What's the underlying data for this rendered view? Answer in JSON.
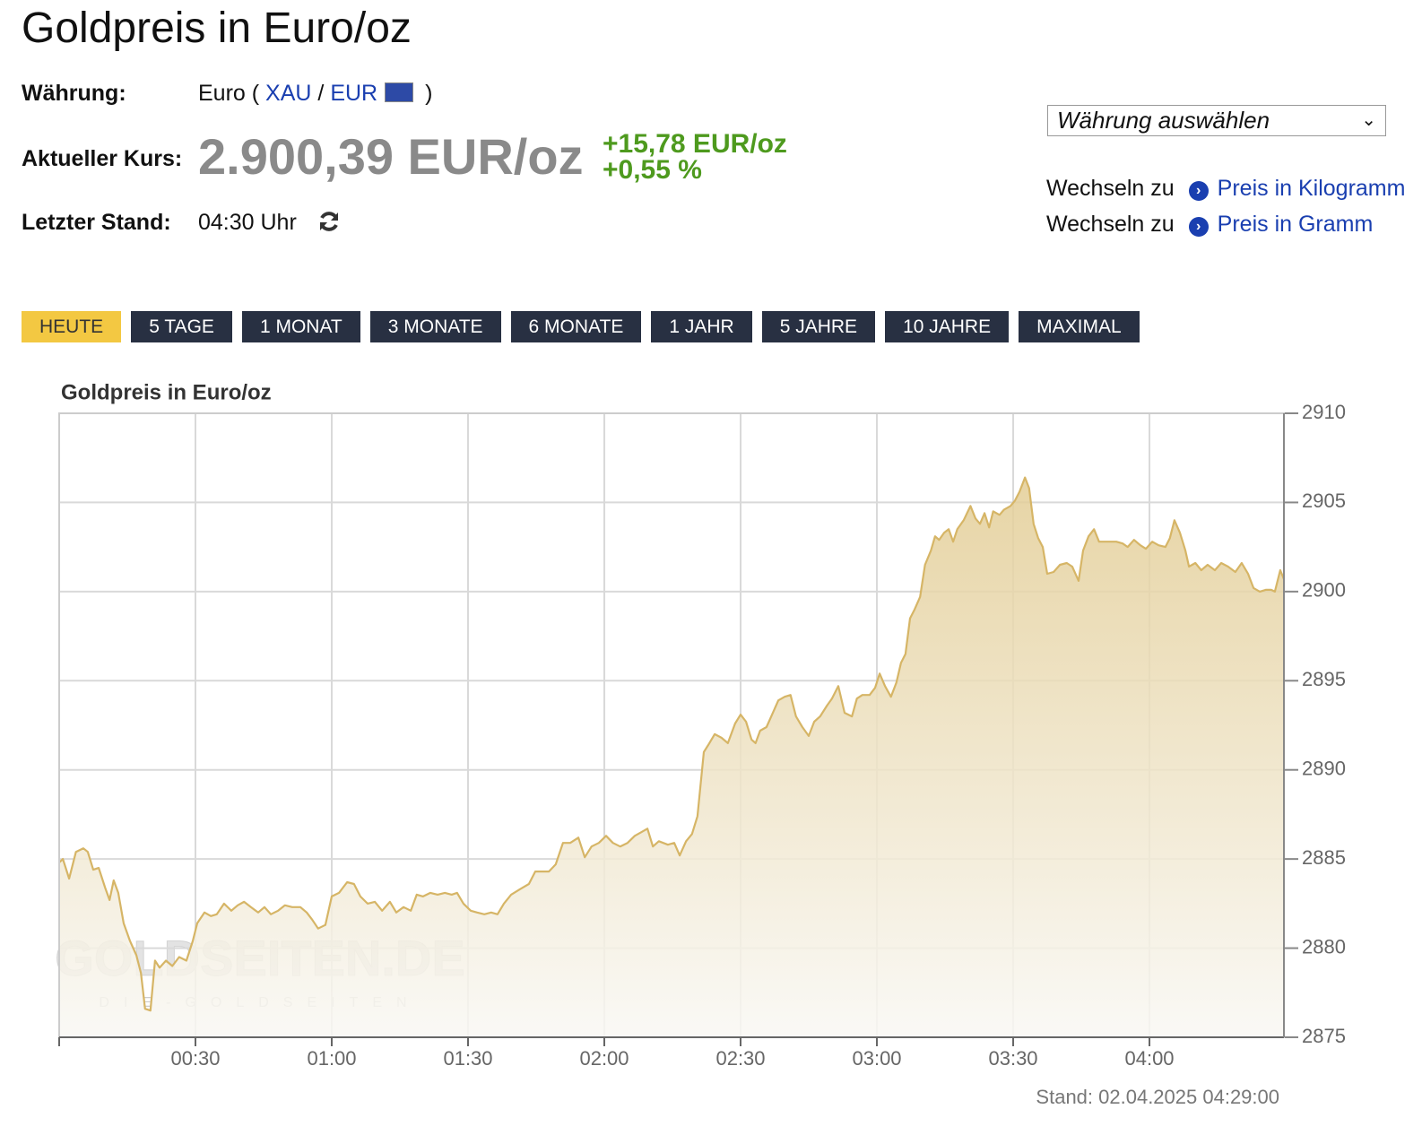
{
  "header": {
    "title": "Goldpreis in Euro/oz"
  },
  "info": {
    "currency_label": "Währung:",
    "currency_prefix": "Euro (",
    "base": "XAU",
    "separator": "/",
    "quote": "EUR",
    "currency_suffix": ")",
    "price_label": "Aktueller Kurs:",
    "price": "2.900,39 EUR/oz",
    "change_abs": "+15,78 EUR/oz",
    "change_pct": "+0,55 %",
    "time_label": "Letzter Stand:",
    "time": "04:30 Uhr"
  },
  "sidebar": {
    "select": "Währung auswählen",
    "links": [
      {
        "prefix": "Wechseln zu",
        "label": "Preis in Kilogramm"
      },
      {
        "prefix": "Wechseln zu",
        "label": "Preis in Gramm"
      }
    ]
  },
  "tabs": {
    "items": [
      "HEUTE",
      "5 TAGE",
      "1 MONAT",
      "3 MONATE",
      "6 MONATE",
      "1 JAHR",
      "5 JAHRE",
      "10 JAHRE",
      "MAXIMAL"
    ],
    "active": 0
  },
  "chart_data": {
    "type": "area",
    "title": "Goldpreis in Euro/oz",
    "color": "#d6b566",
    "x": [
      0,
      0.8,
      2.2,
      3.7,
      5.3,
      6.3,
      7.5,
      8.7,
      10.1,
      11.1,
      12.0,
      13.0,
      14.2,
      15.6,
      17.0,
      18.0,
      18.9,
      20.1,
      21.1,
      22.1,
      23.5,
      24.9,
      26.4,
      28.0,
      29.4,
      30.4,
      32.0,
      33.4,
      34.7,
      36.3,
      37.9,
      39.3,
      40.7,
      42.2,
      43.8,
      45.2,
      46.6,
      48.2,
      49.7,
      51.3,
      53.1,
      54.5,
      55.7,
      57.0,
      58.6,
      60.0,
      61.6,
      63.4,
      64.9,
      66.3,
      67.9,
      69.5,
      71.1,
      72.8,
      74.2,
      75.8,
      77.4,
      78.7,
      80.1,
      81.7,
      83.3,
      84.9,
      86.4,
      87.6,
      89.0,
      90.6,
      92.0,
      93.6,
      95.1,
      96.5,
      97.9,
      99.5,
      101.4,
      103.4,
      104.8,
      106.4,
      107.8,
      109.3,
      110.9,
      112.5,
      114.3,
      115.7,
      117.2,
      118.8,
      120.4,
      121.9,
      123.5,
      125.1,
      126.7,
      128.1,
      129.5,
      130.7,
      132.0,
      134.0,
      135.4,
      136.6,
      138.0,
      139.3,
      140.5,
      141.9,
      142.9,
      144.3,
      145.8,
      147.2,
      148.8,
      150.0,
      151.2,
      152.4,
      153.3,
      154.3,
      155.7,
      157.1,
      158.3,
      159.7,
      161.0,
      162.2,
      163.6,
      165.0,
      166.2,
      167.5,
      169.0,
      170.1,
      171.5,
      172.9,
      174.5,
      175.6,
      176.8,
      178.4,
      179.6,
      180.6,
      181.8,
      183.1,
      184.3,
      185.3,
      186.3,
      187.3,
      188.3,
      189.5,
      190.6,
      191.9,
      192.8,
      193.7,
      194.8,
      195.8,
      196.8,
      197.7,
      199.1,
      200.6,
      201.7,
      202.7,
      203.7,
      204.7,
      205.6,
      207.0,
      208.0,
      209.4,
      210.4,
      211.4,
      212.6,
      213.5,
      214.5,
      215.5,
      216.5,
      217.5,
      218.9,
      220.3,
      221.8,
      223.0,
      224.4,
      225.4,
      226.6,
      227.8,
      228.9,
      230.7,
      232.7,
      234.1,
      235.2,
      236.6,
      238.0,
      239.2,
      240.6,
      242.0,
      243.5,
      244.5,
      245.5,
      246.7,
      247.9,
      248.7,
      250.1,
      251.4,
      252.8,
      254.4,
      255.8,
      257.3,
      258.9,
      260.3,
      261.7,
      262.9,
      264.3,
      265.6,
      266.8,
      267.6,
      268.8,
      269.6
    ],
    "values": [
      2884.8,
      2885.0,
      2883.9,
      2885.4,
      2885.6,
      2885.4,
      2884.4,
      2884.5,
      2883.4,
      2882.7,
      2883.8,
      2883.1,
      2881.4,
      2880.4,
      2879.6,
      2878.6,
      2876.6,
      2876.5,
      2879.3,
      2878.9,
      2879.3,
      2879.0,
      2879.5,
      2879.3,
      2880.4,
      2881.4,
      2882.0,
      2881.8,
      2881.9,
      2882.5,
      2882.1,
      2882.4,
      2882.6,
      2882.3,
      2882.0,
      2882.3,
      2881.9,
      2882.1,
      2882.4,
      2882.3,
      2882.3,
      2882.0,
      2881.6,
      2881.1,
      2881.3,
      2882.9,
      2883.1,
      2883.7,
      2883.6,
      2882.9,
      2882.5,
      2882.6,
      2882.1,
      2882.6,
      2882.0,
      2882.3,
      2882.1,
      2883.0,
      2882.9,
      2883.1,
      2883.0,
      2883.1,
      2883.0,
      2883.1,
      2882.5,
      2882.1,
      2882.0,
      2881.9,
      2882.0,
      2881.9,
      2882.5,
      2883.0,
      2883.3,
      2883.6,
      2884.3,
      2884.3,
      2884.3,
      2884.7,
      2885.9,
      2885.9,
      2886.2,
      2885.1,
      2885.7,
      2885.9,
      2886.3,
      2885.9,
      2885.7,
      2885.9,
      2886.3,
      2886.5,
      2886.7,
      2885.7,
      2886.0,
      2885.8,
      2885.9,
      2885.2,
      2886.0,
      2886.4,
      2887.4,
      2891.0,
      2891.4,
      2892.0,
      2891.8,
      2891.5,
      2892.6,
      2893.1,
      2892.7,
      2891.7,
      2891.5,
      2892.2,
      2892.4,
      2893.2,
      2893.9,
      2894.1,
      2894.2,
      2893.0,
      2892.4,
      2891.9,
      2892.7,
      2893.0,
      2893.6,
      2894.0,
      2894.7,
      2893.2,
      2893.0,
      2894.0,
      2894.2,
      2894.2,
      2894.6,
      2895.4,
      2894.7,
      2894.1,
      2894.9,
      2896.0,
      2896.5,
      2898.5,
      2899.0,
      2899.7,
      2901.5,
      2902.3,
      2903.1,
      2902.9,
      2903.3,
      2903.5,
      2902.8,
      2903.5,
      2904.0,
      2904.8,
      2904.1,
      2903.8,
      2904.4,
      2903.6,
      2904.5,
      2904.3,
      2904.6,
      2904.8,
      2905.1,
      2905.6,
      2906.4,
      2905.8,
      2903.8,
      2903.0,
      2902.5,
      2901.0,
      2901.1,
      2901.5,
      2901.6,
      2901.4,
      2900.6,
      2902.3,
      2903.1,
      2903.5,
      2902.8,
      2902.8,
      2902.8,
      2902.7,
      2902.5,
      2902.9,
      2902.6,
      2902.4,
      2902.8,
      2902.6,
      2902.5,
      2903.0,
      2904.0,
      2903.3,
      2902.3,
      2901.4,
      2901.6,
      2901.2,
      2901.5,
      2901.2,
      2901.6,
      2901.4,
      2901.1,
      2901.6,
      2901.0,
      2900.2,
      2900.0,
      2900.1,
      2900.1,
      2900.0,
      2901.2,
      2900.7
    ],
    "xlim": [
      0,
      269.6
    ],
    "xticks": [
      {
        "value": 30,
        "label": "00:30"
      },
      {
        "value": 60,
        "label": "01:00"
      },
      {
        "value": 90,
        "label": "01:30"
      },
      {
        "value": 120,
        "label": "02:00"
      },
      {
        "value": 150,
        "label": "02:30"
      },
      {
        "value": 180,
        "label": "03:00"
      },
      {
        "value": 210,
        "label": "03:30"
      },
      {
        "value": 240,
        "label": "04:00"
      }
    ],
    "ylim": [
      2875,
      2910
    ],
    "yticks": [
      2875,
      2880,
      2885,
      2890,
      2895,
      2900,
      2905,
      2910
    ],
    "grid": true,
    "watermark": {
      "main": "GOLDSEITEN.DE",
      "sub": "DIE-GOLDSEITEN"
    },
    "footer": "Stand: 02.04.2025 04:29:00"
  }
}
